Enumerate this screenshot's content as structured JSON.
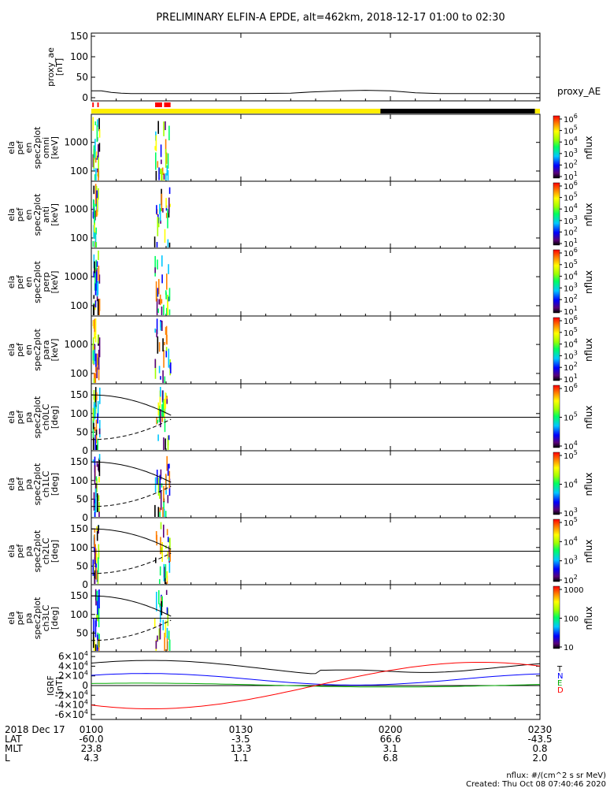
{
  "title": "PRELIMINARY ELFIN-A EPDE, alt=462km, 2018-12-17 01:00 to 02:30",
  "chart_data": [
    {
      "type": "line",
      "panel": "proxy_ae",
      "ylabel_lines": [
        "proxy_ae",
        "[nT]"
      ],
      "side_label": "proxy_AE",
      "ylim": [
        0,
        150
      ],
      "yticks": [
        "0",
        "50",
        "100",
        "150"
      ],
      "series": [
        {
          "x": [
            0,
            2,
            4,
            6,
            8,
            20,
            30,
            40,
            44,
            50,
            55,
            60,
            65,
            70,
            90
          ],
          "y": [
            17,
            17,
            13,
            11,
            10,
            10,
            10,
            11,
            14,
            17,
            18,
            17,
            12,
            10,
            10
          ]
        }
      ]
    },
    {
      "type": "heatmap",
      "panel": "omni",
      "ylabel_lines": [
        "ela",
        "pef",
        "en",
        "spec2plot",
        "omni",
        "[keV]"
      ],
      "scale": "log",
      "yticks": [
        "100",
        "1000"
      ],
      "colorbar": {
        "label": "nflux",
        "ticks": [
          "10^1",
          "10^2",
          "10^3",
          "10^4",
          "10^5",
          "10^6"
        ]
      }
    },
    {
      "type": "heatmap",
      "panel": "anti",
      "ylabel_lines": [
        "ela",
        "pef",
        "en",
        "spec2plot",
        "anti",
        "[keV]"
      ],
      "scale": "log",
      "yticks": [
        "100",
        "1000"
      ],
      "colorbar": {
        "label": "nflux",
        "ticks": [
          "10^1",
          "10^2",
          "10^3",
          "10^4",
          "10^5",
          "10^6"
        ]
      }
    },
    {
      "type": "heatmap",
      "panel": "perp",
      "ylabel_lines": [
        "ela",
        "pef",
        "en",
        "spec2plot",
        "perp",
        "[keV]"
      ],
      "scale": "log",
      "yticks": [
        "100",
        "1000"
      ],
      "colorbar": {
        "label": "nflux",
        "ticks": [
          "10^1",
          "10^2",
          "10^3",
          "10^4",
          "10^5",
          "10^6"
        ]
      }
    },
    {
      "type": "heatmap",
      "panel": "para",
      "ylabel_lines": [
        "ela",
        "pef",
        "en",
        "spec2plot",
        "para",
        "[keV]"
      ],
      "scale": "log",
      "yticks": [
        "100",
        "1000"
      ],
      "colorbar": {
        "label": "nflux",
        "ticks": [
          "10^1",
          "10^2",
          "10^3",
          "10^4",
          "10^5",
          "10^6"
        ]
      }
    },
    {
      "type": "heatmap",
      "panel": "ch0LC",
      "ylabel_lines": [
        "ela",
        "pef",
        "pa",
        "spec2plot",
        "ch0LC",
        "[deg]"
      ],
      "ylim": [
        0,
        180
      ],
      "yticks": [
        "0",
        "50",
        "100",
        "150"
      ],
      "colorbar": {
        "label": "nflux",
        "ticks": [
          "10^4",
          "10^5",
          "10^6"
        ]
      }
    },
    {
      "type": "heatmap",
      "panel": "ch1LC",
      "ylabel_lines": [
        "ela",
        "pef",
        "pa",
        "spec2plot",
        "ch1LC",
        "[deg]"
      ],
      "ylim": [
        0,
        180
      ],
      "yticks": [
        "0",
        "50",
        "100",
        "150"
      ],
      "colorbar": {
        "label": "nflux",
        "ticks": [
          "10^3",
          "10^4",
          "10^5"
        ]
      }
    },
    {
      "type": "heatmap",
      "panel": "ch2LC",
      "ylabel_lines": [
        "ela",
        "pef",
        "pa",
        "spec2plot",
        "ch2LC",
        "[deg]"
      ],
      "ylim": [
        0,
        180
      ],
      "yticks": [
        "0",
        "50",
        "100",
        "150"
      ],
      "colorbar": {
        "label": "nflux",
        "ticks": [
          "10^2",
          "10^3",
          "10^4",
          "10^5"
        ]
      }
    },
    {
      "type": "heatmap",
      "panel": "ch3LC",
      "ylabel_lines": [
        "ela",
        "pef",
        "pa",
        "spec2plot",
        "ch3LC",
        "[deg]"
      ],
      "ylim": [
        0,
        180
      ],
      "yticks": [
        "50",
        "100",
        "150"
      ],
      "colorbar": {
        "label": "nflux",
        "ticks": [
          "10",
          "100",
          "1000"
        ]
      }
    },
    {
      "type": "line",
      "panel": "IGRF",
      "ylabel_lines": [
        "IGRF",
        "[nT]"
      ],
      "ylim": [
        -60000,
        60000
      ],
      "yticks": [
        "-6×10^4",
        "-4×10^4",
        "-2×10^4",
        "0",
        "2×10^4",
        "4×10^4",
        "6×10^4"
      ],
      "legend": [
        "T",
        "N",
        "E",
        "D"
      ],
      "series": [
        {
          "name": "T",
          "color": "#000000"
        },
        {
          "name": "N",
          "color": "#0000ff"
        },
        {
          "name": "E",
          "color": "#00aa00"
        },
        {
          "name": "D",
          "color": "#ff0000"
        }
      ]
    }
  ],
  "xaxis": {
    "date_label": "2018 Dec 17",
    "ticks": [
      "0100",
      "0130",
      "0200",
      "0230"
    ],
    "rows": [
      {
        "label": "LAT",
        "values": [
          "-60.0",
          "-3.5",
          "66.6",
          "-43.5"
        ]
      },
      {
        "label": "MLT",
        "values": [
          "23.8",
          "13.3",
          "3.1",
          "0.8"
        ]
      },
      {
        "label": "L",
        "values": [
          "4.3",
          "1.1",
          "6.8",
          "2.0"
        ]
      }
    ]
  },
  "footer": {
    "units": "nflux: #/(cm^2 s sr MeV)",
    "created": "Created: Thu Oct 08 07:40:46 2020"
  },
  "colors": {
    "yellow_bar": "#ffee00",
    "dark_bar": "#000000",
    "red_marks": "#ff0000"
  }
}
